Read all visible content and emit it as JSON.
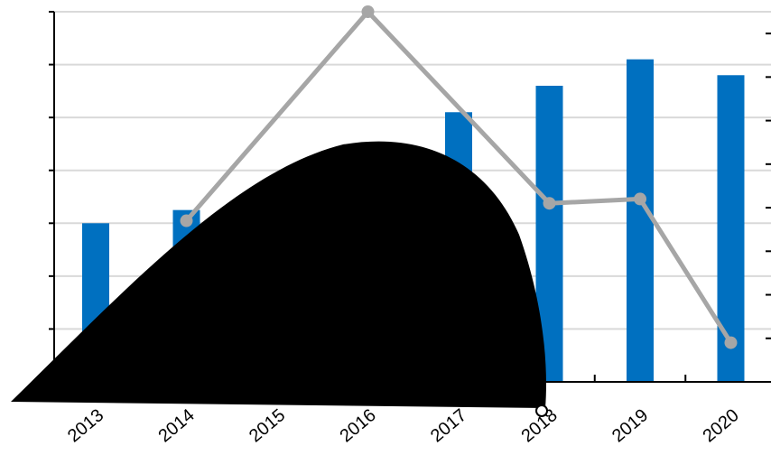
{
  "chart_data": {
    "type": "bar+line",
    "categories": [
      "2013",
      "2014",
      "2015",
      "2016",
      "2017",
      "2018",
      "2019",
      "2020"
    ],
    "series": [
      {
        "kind": "bar",
        "axis": "left",
        "values": [
          3.0,
          3.25,
          null,
          null,
          5.1,
          5.6,
          6.1,
          5.8
        ]
      },
      {
        "kind": "line",
        "axis": "right",
        "values": [
          null,
          3.7,
          null,
          8.5,
          null,
          4.1,
          4.2,
          0.9
        ]
      }
    ],
    "ylim_left": [
      0,
      7
    ],
    "ylim_right": [
      0,
      8.5
    ],
    "grid": true,
    "colors": {
      "bars": "#0070C0",
      "line": "#A6A6A6",
      "grid": "#D9D9D9",
      "axis": "#000000",
      "blob": "#000000"
    },
    "title": "",
    "xlabel": "",
    "ylabel": ""
  }
}
